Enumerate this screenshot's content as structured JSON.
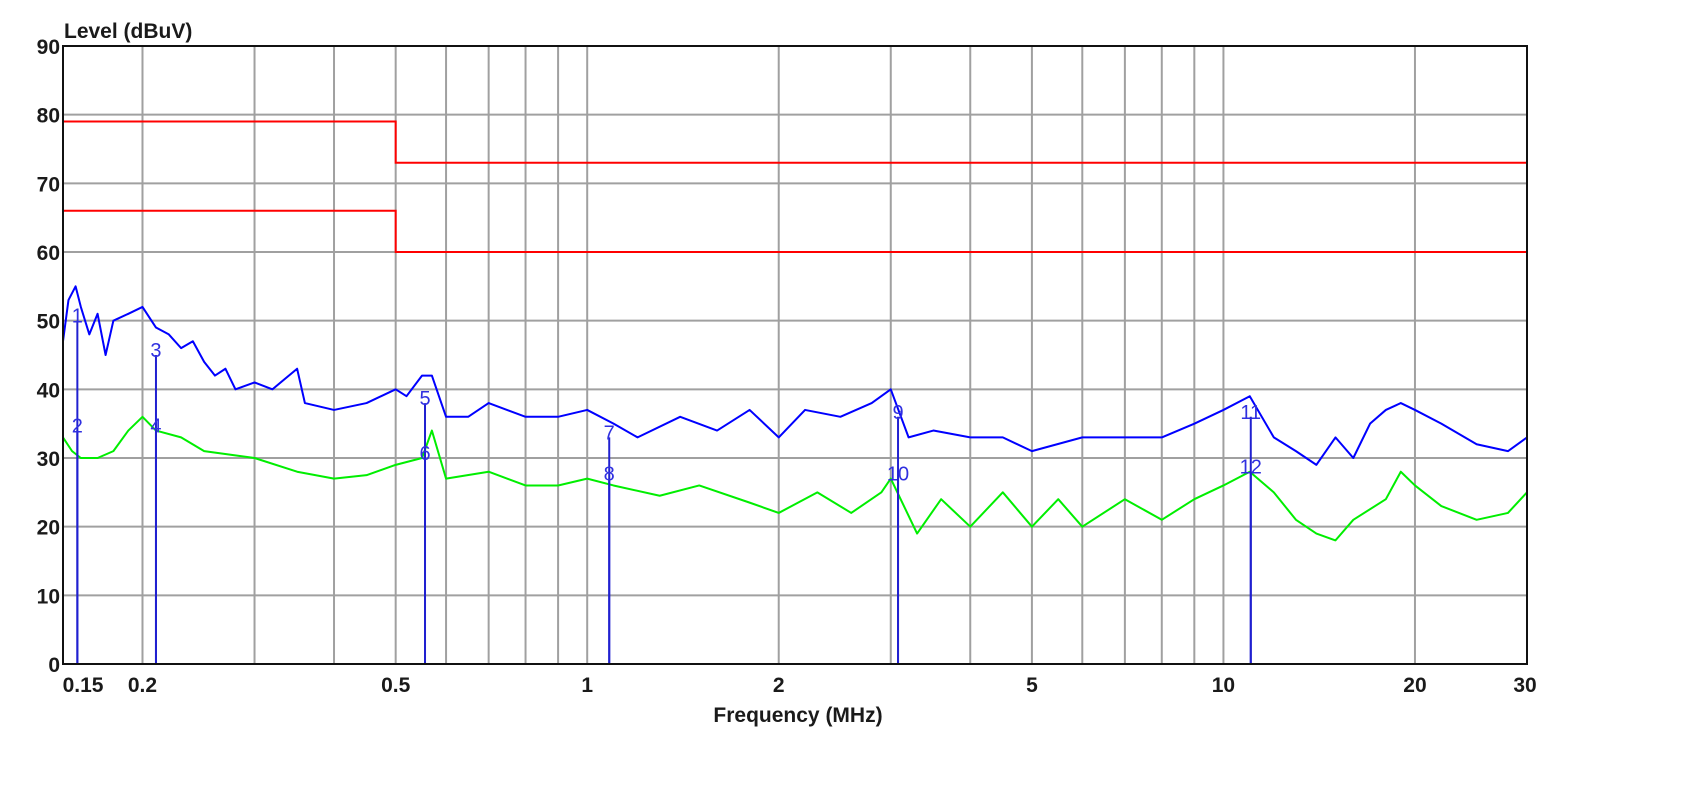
{
  "chart_data": {
    "type": "line",
    "title": "",
    "xlabel": "Frequency (MHz)",
    "ylabel": "Level (dBuV)",
    "xscale": "log",
    "xlim": [
      0.15,
      30
    ],
    "ylim": [
      0,
      90
    ],
    "grid": true,
    "x_tick_labels": [
      "0.15",
      "0.2",
      "0.5",
      "1",
      "2",
      "5",
      "10",
      "20",
      "30"
    ],
    "x_tick_values": [
      0.15,
      0.2,
      0.5,
      1,
      2,
      5,
      10,
      20,
      30
    ],
    "x_grid_values": [
      0.2,
      0.3,
      0.4,
      0.5,
      0.6,
      0.7,
      0.8,
      0.9,
      1,
      2,
      3,
      4,
      5,
      6,
      7,
      8,
      9,
      10,
      20
    ],
    "y_tick_labels": [
      "0",
      "10",
      "20",
      "30",
      "40",
      "50",
      "60",
      "70",
      "80",
      "90"
    ],
    "y_tick_values": [
      0,
      10,
      20,
      30,
      40,
      50,
      60,
      70,
      80,
      90
    ],
    "colors": {
      "limit": "#ff0000",
      "trace_blue": "#0000ff",
      "trace_green": "#00ee00",
      "marker": "#2020d0",
      "grid": "#a0a0a0"
    },
    "limit_lines": [
      {
        "points": [
          [
            0.15,
            79
          ],
          [
            0.5,
            79
          ],
          [
            0.5,
            73
          ],
          [
            30,
            73
          ]
        ]
      },
      {
        "points": [
          [
            0.15,
            66
          ],
          [
            0.5,
            66
          ],
          [
            0.5,
            60
          ],
          [
            30,
            60
          ]
        ]
      }
    ],
    "series": [
      {
        "color": "#0000ff",
        "points": [
          [
            0.15,
            47
          ],
          [
            0.153,
            53
          ],
          [
            0.157,
            55
          ],
          [
            0.16,
            52
          ],
          [
            0.165,
            48
          ],
          [
            0.17,
            51
          ],
          [
            0.175,
            45
          ],
          [
            0.18,
            50
          ],
          [
            0.19,
            51
          ],
          [
            0.2,
            52
          ],
          [
            0.21,
            49
          ],
          [
            0.22,
            48
          ],
          [
            0.23,
            46
          ],
          [
            0.24,
            47
          ],
          [
            0.25,
            44
          ],
          [
            0.26,
            42
          ],
          [
            0.27,
            43
          ],
          [
            0.28,
            40
          ],
          [
            0.3,
            41
          ],
          [
            0.32,
            40
          ],
          [
            0.35,
            43
          ],
          [
            0.36,
            38
          ],
          [
            0.4,
            37
          ],
          [
            0.45,
            38
          ],
          [
            0.5,
            40
          ],
          [
            0.52,
            39
          ],
          [
            0.55,
            42
          ],
          [
            0.57,
            42
          ],
          [
            0.6,
            36
          ],
          [
            0.65,
            36
          ],
          [
            0.7,
            38
          ],
          [
            0.8,
            36
          ],
          [
            0.9,
            36
          ],
          [
            1.0,
            37
          ],
          [
            1.1,
            35
          ],
          [
            1.2,
            33
          ],
          [
            1.4,
            36
          ],
          [
            1.6,
            34
          ],
          [
            1.8,
            37
          ],
          [
            2.0,
            33
          ],
          [
            2.2,
            37
          ],
          [
            2.5,
            36
          ],
          [
            2.8,
            38
          ],
          [
            3.0,
            40
          ],
          [
            3.2,
            33
          ],
          [
            3.5,
            34
          ],
          [
            4,
            33
          ],
          [
            4.5,
            33
          ],
          [
            5,
            31
          ],
          [
            6,
            33
          ],
          [
            7,
            33
          ],
          [
            8,
            33
          ],
          [
            9,
            35
          ],
          [
            10,
            37
          ],
          [
            11,
            39
          ],
          [
            12,
            33
          ],
          [
            13,
            31
          ],
          [
            14,
            29
          ],
          [
            15,
            33
          ],
          [
            16,
            30
          ],
          [
            17,
            35
          ],
          [
            18,
            37
          ],
          [
            19,
            38
          ],
          [
            20,
            37
          ],
          [
            22,
            35
          ],
          [
            25,
            32
          ],
          [
            28,
            31
          ],
          [
            30,
            33
          ]
        ]
      },
      {
        "color": "#00ee00",
        "points": [
          [
            0.15,
            33
          ],
          [
            0.155,
            31
          ],
          [
            0.16,
            30
          ],
          [
            0.17,
            30
          ],
          [
            0.18,
            31
          ],
          [
            0.19,
            34
          ],
          [
            0.2,
            36
          ],
          [
            0.21,
            34
          ],
          [
            0.23,
            33
          ],
          [
            0.25,
            31
          ],
          [
            0.3,
            30
          ],
          [
            0.35,
            28
          ],
          [
            0.4,
            27
          ],
          [
            0.45,
            27.5
          ],
          [
            0.5,
            29
          ],
          [
            0.55,
            30
          ],
          [
            0.57,
            34
          ],
          [
            0.6,
            27
          ],
          [
            0.7,
            28
          ],
          [
            0.8,
            26
          ],
          [
            0.9,
            26
          ],
          [
            1.0,
            27
          ],
          [
            1.1,
            26
          ],
          [
            1.3,
            24.5
          ],
          [
            1.5,
            26
          ],
          [
            1.8,
            23.5
          ],
          [
            2.0,
            22
          ],
          [
            2.3,
            25
          ],
          [
            2.6,
            22
          ],
          [
            2.9,
            25
          ],
          [
            3.0,
            27
          ],
          [
            3.3,
            19
          ],
          [
            3.6,
            24
          ],
          [
            4,
            20
          ],
          [
            4.5,
            25
          ],
          [
            5,
            20
          ],
          [
            5.5,
            24
          ],
          [
            6,
            20
          ],
          [
            7,
            24
          ],
          [
            8,
            21
          ],
          [
            9,
            24
          ],
          [
            10,
            26
          ],
          [
            11,
            28
          ],
          [
            12,
            25
          ],
          [
            13,
            21
          ],
          [
            14,
            19
          ],
          [
            15,
            18
          ],
          [
            16,
            21
          ],
          [
            18,
            24
          ],
          [
            19,
            28
          ],
          [
            20,
            26
          ],
          [
            22,
            23
          ],
          [
            25,
            21
          ],
          [
            28,
            22
          ],
          [
            30,
            25
          ]
        ]
      }
    ],
    "markers": [
      {
        "label": "1",
        "freq": 0.158,
        "level": 50
      },
      {
        "label": "2",
        "freq": 0.158,
        "level": 34
      },
      {
        "label": "3",
        "freq": 0.21,
        "level": 45
      },
      {
        "label": "4",
        "freq": 0.21,
        "level": 34
      },
      {
        "label": "5",
        "freq": 0.556,
        "level": 38
      },
      {
        "label": "6",
        "freq": 0.556,
        "level": 30
      },
      {
        "label": "7",
        "freq": 1.083,
        "level": 33
      },
      {
        "label": "8",
        "freq": 1.083,
        "level": 27
      },
      {
        "label": "9",
        "freq": 3.08,
        "level": 36
      },
      {
        "label": "10",
        "freq": 3.08,
        "level": 27
      },
      {
        "label": "11",
        "freq": 11.04,
        "level": 36
      },
      {
        "label": "12",
        "freq": 11.04,
        "level": 28
      }
    ]
  }
}
